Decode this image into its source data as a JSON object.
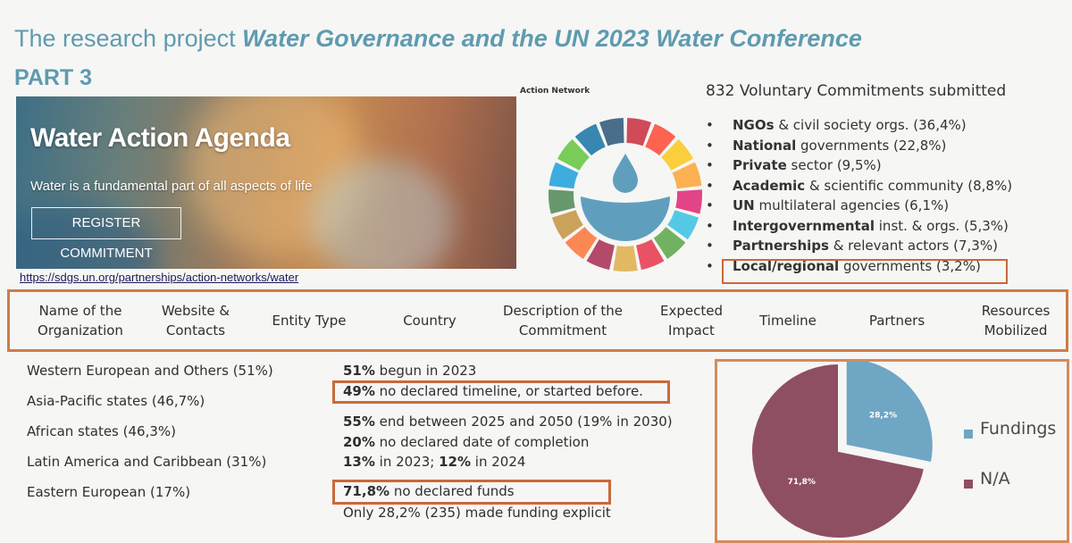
{
  "header": {
    "title_prefix": "The research project",
    "title_emph": "Water Governance and the UN 2023 Water Conference",
    "part": "PART 3"
  },
  "banner": {
    "title": "Water Action Agenda",
    "subtitle": "Water is a fundamental part of all aspects of life",
    "button": "REGISTER COMMITMENT",
    "url": "https://sdgs.un.org/partnerships/action-networks/water"
  },
  "action_network": {
    "label": "Action Network",
    "colors": [
      "#c5192d",
      "#ff3a21",
      "#fcc30b",
      "#fd9d24",
      "#dd1367",
      "#26bde2",
      "#4c9f38",
      "#e5243b",
      "#dda63a",
      "#a21942",
      "#fd6925",
      "#bf8b2e",
      "#3f7e44",
      "#0a97d9",
      "#56c02b",
      "#00689d",
      "#19486a"
    ]
  },
  "commitments": {
    "header": "832 Voluntary Commitments submitted",
    "items": [
      {
        "bold": "NGOs",
        "rest": " & civil society orgs. (36,4%)"
      },
      {
        "bold": "National",
        "rest": " governments (22,8%)"
      },
      {
        "bold": "Private",
        "rest": " sector (9,5%)"
      },
      {
        "bold": "Academic",
        "rest": " & scientific community (8,8%)"
      },
      {
        "bold": "UN",
        "rest": " multilateral agencies (6,1%)"
      },
      {
        "bold": "Intergovernmental",
        "rest": " inst. & orgs. (5,3%)"
      },
      {
        "bold": "Partnerships",
        "rest": " & relevant actors (7,3%)"
      },
      {
        "bold": "Local/regional",
        "rest": " governments (3,2%)"
      }
    ]
  },
  "columns": [
    "Name of the Organization",
    "Website & Contacts",
    "Entity Type",
    "Country",
    "Description of the Commitment",
    "Expected Impact",
    "Timeline",
    "Partners",
    "Resources Mobilized"
  ],
  "regions": [
    {
      "name": "Western European and Others",
      "pct": "(51%)"
    },
    {
      "name": "Asia-Pacific states",
      "pct": "(46,7%)"
    },
    {
      "name": "African states",
      "pct": "(46,3%)"
    },
    {
      "name": "Latin America and Caribbean",
      "pct": "(31%)"
    },
    {
      "name": "Eastern European",
      "pct": "(17%)"
    }
  ],
  "timeline_stats": [
    {
      "bold": "51%",
      "rest": " begun in 2023"
    },
    {
      "bold": "49%",
      "rest": " no declared timeline, or started before."
    },
    {
      "bold": "55%",
      "rest": " end between 2025 and 2050 (19% in 2030)"
    },
    {
      "bold": "20%",
      "rest": " no declared date of completion"
    },
    {
      "bold": "13%",
      "rest": " in 2023; ",
      "bold2": "12%",
      "rest2": " in 2024"
    }
  ],
  "funding_stats": [
    {
      "bold": "71,8%",
      "rest": " no declared funds"
    },
    {
      "text": "Only 28,2% (235) made funding explicit"
    }
  ],
  "chart_data": {
    "type": "pie",
    "title": "",
    "categories": [
      "Fundings",
      "N/A"
    ],
    "values": [
      28.2,
      71.8
    ],
    "labels": [
      "28,2%",
      "71,8%"
    ],
    "colors": [
      "#6fa6c4",
      "#8e4f63"
    ],
    "legend": [
      "Fundings",
      "N/A"
    ],
    "legend_position": "right"
  }
}
